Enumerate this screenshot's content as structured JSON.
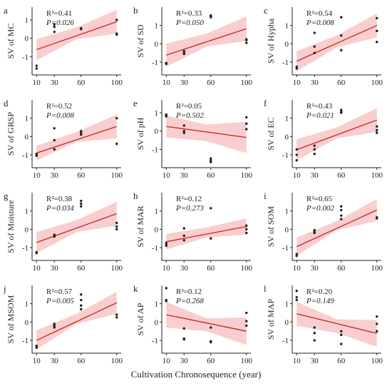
{
  "figure": {
    "xlabel": "Cultivation Chronosequence (year)",
    "colors": {
      "band": "#f4a6a6",
      "band_opacity": 0.55,
      "line": "#cc2222",
      "point": "#222222",
      "axis": "#222222"
    }
  },
  "chart_data": [
    {
      "panel": "a",
      "type": "scatter",
      "ylabel": "SV of MC",
      "r2": "R²=0.41",
      "p": "P=0.026",
      "x_ticks": [
        10,
        30,
        60,
        100
      ],
      "y_ticks": [
        -1,
        0,
        1
      ],
      "ylim": [
        -2.0,
        1.7
      ],
      "xlim": [
        5,
        105
      ],
      "points": [
        [
          10,
          -1.5
        ],
        [
          10,
          -1.65
        ],
        [
          30,
          0.75
        ],
        [
          30,
          0.62
        ],
        [
          30,
          0.35
        ],
        [
          60,
          0.5
        ],
        [
          60,
          0.55
        ],
        [
          100,
          1.0
        ],
        [
          100,
          0.2
        ],
        [
          100,
          0.25
        ]
      ],
      "fit": [
        [
          10,
          -0.62
        ],
        [
          100,
          0.9
        ]
      ],
      "band_low": [
        [
          10,
          -1.2
        ],
        [
          55,
          -0.05
        ],
        [
          100,
          0.25
        ]
      ],
      "band_high": [
        [
          10,
          -0.05
        ],
        [
          55,
          0.6
        ],
        [
          100,
          1.55
        ]
      ]
    },
    {
      "panel": "b",
      "type": "scatter",
      "ylabel": "SV of SD",
      "r2": "R²=0.33",
      "p": "P=0.050",
      "x_ticks": [
        10,
        30,
        60,
        100
      ],
      "y_ticks": [
        -1,
        0,
        1
      ],
      "ylim": [
        -1.7,
        2.0
      ],
      "xlim": [
        5,
        105
      ],
      "points": [
        [
          10,
          -1.05
        ],
        [
          10,
          -1.1
        ],
        [
          30,
          -0.4
        ],
        [
          30,
          -0.55
        ],
        [
          30,
          -0.5
        ],
        [
          60,
          1.5
        ],
        [
          60,
          1.45
        ],
        [
          60,
          1.55
        ],
        [
          100,
          0.2
        ],
        [
          100,
          0.05
        ],
        [
          100,
          0.25
        ]
      ],
      "fit": [
        [
          10,
          -0.62
        ],
        [
          100,
          0.82
        ]
      ],
      "band_low": [
        [
          10,
          -1.25
        ],
        [
          55,
          -0.15
        ],
        [
          100,
          0.15
        ]
      ],
      "band_high": [
        [
          10,
          0.0
        ],
        [
          55,
          0.55
        ],
        [
          100,
          1.5
        ]
      ]
    },
    {
      "panel": "c",
      "type": "scatter",
      "ylabel": "SV of Hypha",
      "r2": "R²=0.54",
      "p": "P=0.008",
      "x_ticks": [
        10,
        30,
        60,
        100
      ],
      "y_ticks": [
        -1,
        0,
        1
      ],
      "ylim": [
        -1.7,
        2.0
      ],
      "xlim": [
        5,
        105
      ],
      "points": [
        [
          10,
          -1.25
        ],
        [
          10,
          -1.35
        ],
        [
          30,
          -0.5
        ],
        [
          30,
          -0.15
        ],
        [
          30,
          0.6
        ],
        [
          60,
          1.45
        ],
        [
          60,
          0.45
        ],
        [
          60,
          -0.35
        ],
        [
          100,
          1.4
        ],
        [
          100,
          0.7
        ],
        [
          100,
          0.1
        ]
      ],
      "fit": [
        [
          10,
          -0.95
        ],
        [
          100,
          1.0
        ]
      ],
      "band_low": [
        [
          10,
          -1.5
        ],
        [
          55,
          -0.2
        ],
        [
          100,
          0.35
        ]
      ],
      "band_high": [
        [
          10,
          -0.4
        ],
        [
          55,
          0.45
        ],
        [
          100,
          1.65
        ]
      ]
    },
    {
      "panel": "d",
      "type": "scatter",
      "ylabel": "SV of GRSP",
      "r2": "R²=0.52",
      "p": "P=0.008",
      "x_ticks": [
        10,
        30,
        60,
        100
      ],
      "y_ticks": [
        -1,
        0,
        1
      ],
      "ylim": [
        -1.7,
        2.0
      ],
      "xlim": [
        5,
        105
      ],
      "points": [
        [
          10,
          -0.95
        ],
        [
          10,
          -1.05
        ],
        [
          10,
          -1.0
        ],
        [
          30,
          0.45
        ],
        [
          30,
          -0.2
        ],
        [
          30,
          -0.7
        ],
        [
          60,
          0.3
        ],
        [
          60,
          0.1
        ],
        [
          60,
          0.2
        ],
        [
          100,
          1.0
        ],
        [
          100,
          -0.4
        ]
      ],
      "fit": [
        [
          10,
          -0.9
        ],
        [
          100,
          0.55
        ]
      ],
      "band_low": [
        [
          10,
          -1.3
        ],
        [
          55,
          -0.3
        ],
        [
          100,
          -0.1
        ]
      ],
      "band_high": [
        [
          10,
          -0.5
        ],
        [
          55,
          0.25
        ],
        [
          100,
          1.2
        ]
      ]
    },
    {
      "panel": "e",
      "type": "scatter",
      "ylabel": "SV of pH",
      "r2": "R²=0.05",
      "p": "P=0.502",
      "x_ticks": [
        10,
        30,
        60,
        100
      ],
      "y_ticks": [
        -1,
        0,
        1
      ],
      "ylim": [
        -2.0,
        1.7
      ],
      "xlim": [
        5,
        105
      ],
      "points": [
        [
          10,
          0.9
        ],
        [
          10,
          0.8
        ],
        [
          10,
          0.85
        ],
        [
          30,
          0.3
        ],
        [
          30,
          -0.1
        ],
        [
          30,
          0.0
        ],
        [
          60,
          -1.5
        ],
        [
          60,
          -1.6
        ],
        [
          60,
          -1.7
        ],
        [
          100,
          0.75
        ],
        [
          100,
          0.4
        ],
        [
          100,
          0.1
        ]
      ],
      "fit": [
        [
          10,
          0.25
        ],
        [
          100,
          -0.35
        ]
      ],
      "band_low": [
        [
          10,
          -0.35
        ],
        [
          55,
          -0.55
        ],
        [
          100,
          -1.2
        ]
      ],
      "band_high": [
        [
          10,
          0.85
        ],
        [
          55,
          0.35
        ],
        [
          100,
          0.5
        ]
      ]
    },
    {
      "panel": "f",
      "type": "scatter",
      "ylabel": "SV of EC",
      "r2": "R²=0.43",
      "p": "P=0.021",
      "x_ticks": [
        10,
        30,
        60,
        100
      ],
      "y_ticks": [
        -1,
        0,
        1
      ],
      "ylim": [
        -1.7,
        2.0
      ],
      "xlim": [
        5,
        105
      ],
      "points": [
        [
          10,
          -0.7
        ],
        [
          10,
          -1.0
        ],
        [
          10,
          -1.3
        ],
        [
          30,
          -0.5
        ],
        [
          30,
          -0.7
        ],
        [
          30,
          -0.95
        ],
        [
          60,
          1.45
        ],
        [
          60,
          1.35
        ],
        [
          60,
          1.3
        ],
        [
          100,
          0.55
        ],
        [
          100,
          0.35
        ],
        [
          100,
          0.2
        ]
      ],
      "fit": [
        [
          10,
          -0.72
        ],
        [
          100,
          0.9
        ]
      ],
      "band_low": [
        [
          10,
          -1.3
        ],
        [
          55,
          -0.1
        ],
        [
          100,
          0.25
        ]
      ],
      "band_high": [
        [
          10,
          -0.15
        ],
        [
          55,
          0.5
        ],
        [
          100,
          1.55
        ]
      ]
    },
    {
      "panel": "g",
      "type": "scatter",
      "ylabel": "SV of Moisture",
      "r2": "R²=0.38",
      "p": "P=0.034",
      "x_ticks": [
        10,
        30,
        60,
        100
      ],
      "y_ticks": [
        -1,
        0,
        1
      ],
      "ylim": [
        -1.7,
        2.0
      ],
      "xlim": [
        5,
        105
      ],
      "points": [
        [
          10,
          -1.25
        ],
        [
          10,
          -1.3
        ],
        [
          30,
          -0.3
        ],
        [
          30,
          -0.35
        ],
        [
          30,
          -0.4
        ],
        [
          60,
          1.55
        ],
        [
          60,
          1.4
        ],
        [
          60,
          1.25
        ],
        [
          100,
          0.35
        ],
        [
          100,
          0.15
        ],
        [
          100,
          0.0
        ]
      ],
      "fit": [
        [
          10,
          -0.72
        ],
        [
          100,
          0.85
        ]
      ],
      "band_low": [
        [
          10,
          -1.3
        ],
        [
          55,
          -0.15
        ],
        [
          100,
          0.2
        ]
      ],
      "band_high": [
        [
          10,
          -0.15
        ],
        [
          55,
          0.5
        ],
        [
          100,
          1.5
        ]
      ]
    },
    {
      "panel": "h",
      "type": "scatter",
      "ylabel": "SV of MAR",
      "r2": "R²=0.12",
      "p": "P=0.273",
      "x_ticks": [
        10,
        30,
        60,
        100
      ],
      "y_ticks": [
        -1,
        0,
        1
      ],
      "ylim": [
        -1.7,
        2.0
      ],
      "xlim": [
        5,
        105
      ],
      "points": [
        [
          10,
          -0.75
        ],
        [
          10,
          -0.85
        ],
        [
          10,
          -0.9
        ],
        [
          30,
          0.05
        ],
        [
          30,
          -0.35
        ],
        [
          30,
          -0.6
        ],
        [
          60,
          1.15
        ],
        [
          60,
          -0.5
        ],
        [
          100,
          0.2
        ],
        [
          100,
          0.0
        ],
        [
          100,
          -0.2
        ]
      ],
      "fit": [
        [
          10,
          -0.68
        ],
        [
          100,
          0.15
        ]
      ],
      "band_low": [
        [
          10,
          -1.1
        ],
        [
          55,
          -0.45
        ],
        [
          100,
          -0.3
        ]
      ],
      "band_high": [
        [
          10,
          -0.25
        ],
        [
          55,
          0.1
        ],
        [
          100,
          0.6
        ]
      ]
    },
    {
      "panel": "i",
      "type": "scatter",
      "ylabel": "SV of SOM",
      "r2": "R²=0.65",
      "p": "P=0.002",
      "x_ticks": [
        10,
        30,
        60,
        100
      ],
      "y_ticks": [
        -1,
        0,
        1
      ],
      "ylim": [
        -1.7,
        2.0
      ],
      "xlim": [
        5,
        105
      ],
      "points": [
        [
          10,
          -1.35
        ],
        [
          10,
          -1.45
        ],
        [
          30,
          -0.05
        ],
        [
          30,
          -0.15
        ],
        [
          30,
          -0.2
        ],
        [
          60,
          1.25
        ],
        [
          60,
          1.05
        ],
        [
          60,
          0.75
        ],
        [
          60,
          0.55
        ],
        [
          100,
          0.65
        ],
        [
          100,
          0.6
        ]
      ],
      "fit": [
        [
          10,
          -0.95
        ],
        [
          100,
          1.05
        ]
      ],
      "band_low": [
        [
          10,
          -1.45
        ],
        [
          55,
          -0.05
        ],
        [
          100,
          0.45
        ]
      ],
      "band_high": [
        [
          10,
          -0.45
        ],
        [
          55,
          0.45
        ],
        [
          100,
          1.65
        ]
      ]
    },
    {
      "panel": "j",
      "type": "scatter",
      "ylabel": "SV of MSOM",
      "r2": "R²=0.57",
      "p": "P=0.005",
      "x_ticks": [
        10,
        30,
        60,
        100
      ],
      "y_ticks": [
        -1,
        0,
        1
      ],
      "ylim": [
        -1.7,
        2.0
      ],
      "xlim": [
        5,
        105
      ],
      "points": [
        [
          10,
          -1.3
        ],
        [
          10,
          -1.4
        ],
        [
          30,
          -0.1
        ],
        [
          30,
          -0.2
        ],
        [
          30,
          -0.3
        ],
        [
          60,
          1.5
        ],
        [
          60,
          1.2
        ],
        [
          60,
          0.9
        ],
        [
          60,
          0.7
        ],
        [
          100,
          0.4
        ],
        [
          100,
          0.25
        ]
      ],
      "fit": [
        [
          10,
          -1.0
        ],
        [
          100,
          1.05
        ]
      ],
      "band_low": [
        [
          10,
          -1.5
        ],
        [
          55,
          -0.1
        ],
        [
          100,
          0.45
        ]
      ],
      "band_high": [
        [
          10,
          -0.45
        ],
        [
          55,
          0.45
        ],
        [
          100,
          1.65
        ]
      ]
    },
    {
      "panel": "k",
      "type": "scatter",
      "ylabel": "SV of AP",
      "r2": "R²=0.12",
      "p": "P=0.268",
      "x_ticks": [
        10,
        30,
        60,
        100
      ],
      "y_ticks": [
        -1,
        0,
        1
      ],
      "ylim": [
        -1.7,
        2.0
      ],
      "xlim": [
        5,
        105
      ],
      "points": [
        [
          10,
          1.85
        ],
        [
          10,
          1.2
        ],
        [
          10,
          1.15
        ],
        [
          30,
          -0.35
        ],
        [
          30,
          -0.9
        ],
        [
          30,
          -0.95
        ],
        [
          60,
          -0.3
        ],
        [
          60,
          -1.05
        ],
        [
          60,
          -1.1
        ],
        [
          100,
          0.5
        ],
        [
          100,
          0.05
        ],
        [
          100,
          -0.2
        ]
      ],
      "fit": [
        [
          10,
          0.4
        ],
        [
          100,
          -0.5
        ]
      ],
      "band_low": [
        [
          10,
          -0.3
        ],
        [
          55,
          -0.5
        ],
        [
          100,
          -1.25
        ]
      ],
      "band_high": [
        [
          10,
          1.1
        ],
        [
          55,
          0.2
        ],
        [
          100,
          0.25
        ]
      ]
    },
    {
      "panel": "l",
      "type": "scatter",
      "ylabel": "SV of MAP",
      "r2": "R²=0.20",
      "p": "P=0.149",
      "x_ticks": [
        10,
        30,
        60,
        100
      ],
      "y_ticks": [
        -1,
        0,
        1
      ],
      "ylim": [
        -1.7,
        2.0
      ],
      "xlim": [
        5,
        105
      ],
      "points": [
        [
          10,
          1.7
        ],
        [
          10,
          1.35
        ],
        [
          10,
          1.2
        ],
        [
          30,
          -0.3
        ],
        [
          30,
          -0.6
        ],
        [
          30,
          -1.0
        ],
        [
          60,
          -0.5
        ],
        [
          60,
          -0.7
        ],
        [
          60,
          -1.2
        ],
        [
          100,
          0.3
        ],
        [
          100,
          -0.1
        ],
        [
          100,
          -0.5
        ]
      ],
      "fit": [
        [
          10,
          0.45
        ],
        [
          100,
          -0.62
        ]
      ],
      "band_low": [
        [
          10,
          -0.2
        ],
        [
          55,
          -0.6
        ],
        [
          100,
          -1.35
        ]
      ],
      "band_high": [
        [
          10,
          1.1
        ],
        [
          55,
          0.15
        ],
        [
          100,
          0.1
        ]
      ]
    }
  ]
}
